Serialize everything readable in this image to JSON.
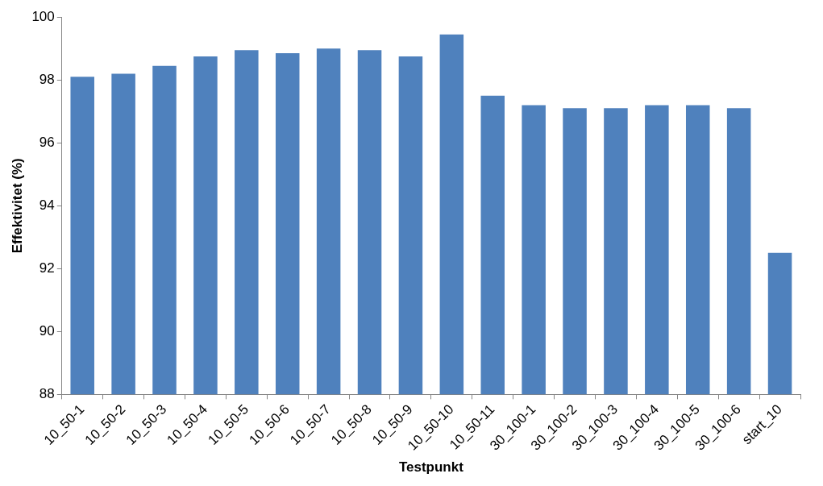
{
  "chart_data": {
    "type": "bar",
    "xlabel": "Testpunkt",
    "ylabel": "Effektivitet (%)",
    "categories": [
      "10_50-1",
      "10_50-2",
      "10_50-3",
      "10_50-4",
      "10_50-5",
      "10_50-6",
      "10_50-7",
      "10_50-8",
      "10_50-9",
      "10_50-10",
      "10_50-11",
      "30_100-1",
      "30_100-2",
      "30_100-3",
      "30_100-4",
      "30_100-5",
      "30_100-6",
      "start_10"
    ],
    "values": [
      98.1,
      98.2,
      98.45,
      98.75,
      98.95,
      98.85,
      99.0,
      98.95,
      98.75,
      99.45,
      97.5,
      97.2,
      97.1,
      97.1,
      97.2,
      97.2,
      97.1,
      92.5
    ],
    "color": "#4f81bd",
    "ylim": [
      88,
      100
    ],
    "yticks": [
      88,
      90,
      92,
      94,
      96,
      98,
      100
    ],
    "grid": false,
    "legend": false
  }
}
